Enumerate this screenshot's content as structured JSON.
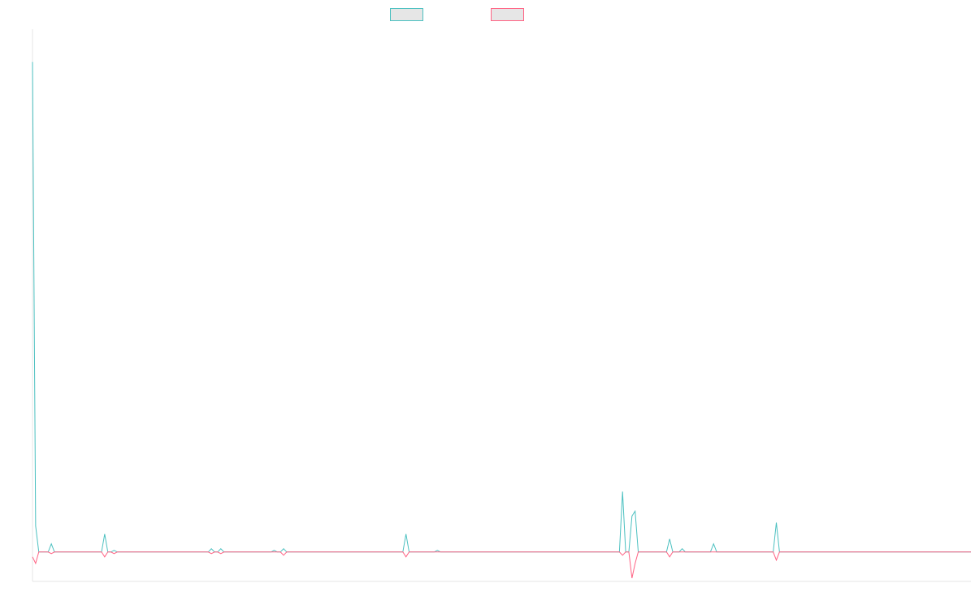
{
  "chart_data": {
    "type": "line",
    "title": "",
    "xlabel": "",
    "ylabel": "",
    "legend_position": "top",
    "axis_lines": true,
    "grid": false,
    "tick_labels_visible": false,
    "ylim": [
      -1.8,
      32
    ],
    "x": [
      0,
      1,
      2,
      3,
      4,
      5,
      6,
      7,
      8,
      9,
      10,
      11,
      12,
      13,
      14,
      15,
      16,
      17,
      18,
      19,
      20,
      21,
      22,
      23,
      24,
      25,
      26,
      27,
      28,
      29,
      30,
      31,
      32,
      33,
      34,
      35,
      36,
      37,
      38,
      39,
      40,
      41,
      42,
      43,
      44,
      45,
      46,
      47,
      48,
      49,
      50,
      51,
      52,
      53,
      54,
      55,
      56,
      57,
      58,
      59,
      60,
      61,
      62,
      63,
      64,
      65,
      66,
      67,
      68,
      69,
      70,
      71,
      72,
      73,
      74,
      75,
      76,
      77,
      78,
      79,
      80,
      81,
      82,
      83,
      84,
      85,
      86,
      87,
      88,
      89,
      90,
      91,
      92,
      93,
      94,
      95,
      96,
      97,
      98,
      99,
      100,
      101,
      102,
      103,
      104,
      105,
      106,
      107,
      108,
      109,
      110,
      111,
      112,
      113,
      114,
      115,
      116,
      117,
      118,
      119,
      120,
      121,
      122,
      123,
      124,
      125,
      126,
      127,
      128,
      129,
      130,
      131,
      132,
      133,
      134,
      135,
      136,
      137,
      138,
      139,
      140,
      141,
      142,
      143,
      144,
      145,
      146,
      147,
      148,
      149,
      150,
      151,
      152,
      153,
      154,
      155,
      156,
      157,
      158,
      159,
      160,
      161,
      162,
      163,
      164,
      165,
      166,
      167,
      168,
      169,
      170,
      171,
      172,
      173,
      174,
      175,
      176,
      177,
      178,
      179,
      180,
      181,
      182,
      183,
      184,
      185,
      186,
      187,
      188,
      189,
      190,
      191,
      192,
      193,
      194,
      195,
      196,
      197,
      198,
      199,
      200,
      201,
      202,
      203,
      204,
      205,
      206,
      207,
      208,
      209,
      210,
      211,
      212,
      213,
      214,
      215,
      216,
      217,
      218,
      219,
      220,
      221,
      222,
      223,
      224,
      225,
      226,
      227,
      228,
      229,
      230,
      231,
      232,
      233,
      234,
      235,
      236,
      237,
      238,
      239,
      240,
      241,
      242,
      243,
      244,
      245,
      246,
      247,
      248,
      249,
      250,
      251,
      252,
      253,
      254,
      255,
      256,
      257,
      258,
      259,
      260,
      261,
      262,
      263,
      264,
      265,
      266,
      267,
      268,
      269,
      270,
      271,
      272,
      273,
      274,
      275,
      276,
      277,
      278,
      279,
      280,
      281,
      282,
      283,
      284,
      285,
      286,
      287,
      288,
      289,
      290,
      291,
      292,
      293,
      294,
      295,
      296,
      297,
      298,
      299
    ],
    "series": [
      {
        "name": "",
        "color": "#4bc0c0",
        "fill": "#e6e6e6",
        "spikes": [
          [
            0,
            30
          ],
          [
            1,
            1.6
          ],
          [
            6,
            0.5
          ],
          [
            23,
            1.1
          ],
          [
            26,
            0.1
          ],
          [
            57,
            0.2
          ],
          [
            60,
            0.2
          ],
          [
            77,
            0.1
          ],
          [
            80,
            0.2
          ],
          [
            119,
            1.1
          ],
          [
            129,
            0.1
          ],
          [
            188,
            3.7
          ],
          [
            191,
            2.2
          ],
          [
            192,
            2.5
          ],
          [
            203,
            0.8
          ],
          [
            207,
            0.2
          ],
          [
            217,
            0.5
          ],
          [
            237,
            1.8
          ]
        ]
      },
      {
        "name": "",
        "color": "#ff6384",
        "fill": "#e6e6e6",
        "spikes": [
          [
            0,
            -0.3
          ],
          [
            1,
            -0.7
          ],
          [
            6,
            -0.1
          ],
          [
            23,
            -0.3
          ],
          [
            26,
            -0.1
          ],
          [
            57,
            -0.1
          ],
          [
            60,
            -0.1
          ],
          [
            80,
            -0.2
          ],
          [
            119,
            -0.3
          ],
          [
            188,
            -0.2
          ],
          [
            191,
            -1.6
          ],
          [
            192,
            -0.7
          ],
          [
            203,
            -0.3
          ],
          [
            237,
            -0.5
          ]
        ]
      }
    ]
  }
}
